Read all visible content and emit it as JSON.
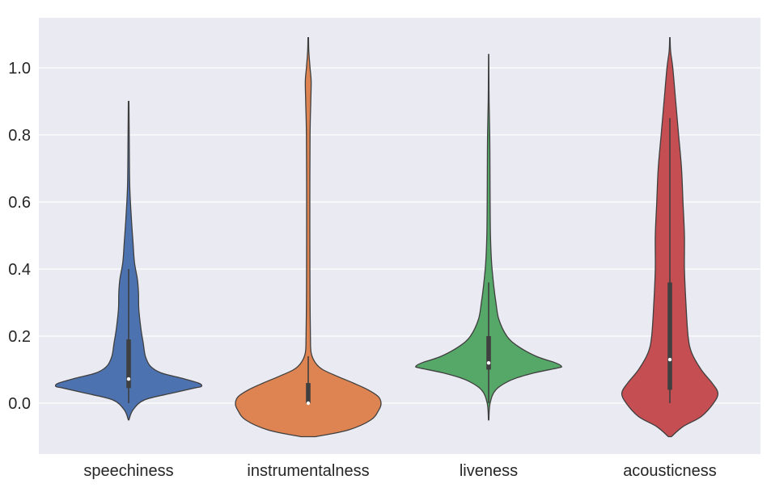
{
  "chart_data": {
    "type": "violin",
    "title": "",
    "xlabel": "",
    "ylabel": "",
    "ylim": [
      -0.15,
      1.15
    ],
    "yticks": [
      0.0,
      0.2,
      0.4,
      0.6,
      0.8,
      1.0
    ],
    "ytick_labels": [
      "0.0",
      "0.2",
      "0.4",
      "0.6",
      "0.8",
      "1.0"
    ],
    "grid": true,
    "background_color": "#eaeaf2",
    "categories": [
      "speechiness",
      "instrumentalness",
      "liveness",
      "acousticness"
    ],
    "violins": [
      {
        "category": "speechiness",
        "color": "#4c72b0",
        "range": [
          -0.05,
          0.9
        ],
        "box": {
          "q1": 0.045,
          "median": 0.072,
          "q3": 0.19,
          "whisker_low": 0.0,
          "whisker_high": 0.4
        },
        "profile": [
          [
            -0.05,
            0.004
          ],
          [
            -0.02,
            0.06
          ],
          [
            0.01,
            0.22
          ],
          [
            0.03,
            0.6
          ],
          [
            0.045,
            0.9
          ],
          [
            0.05,
            1.0
          ],
          [
            0.06,
            0.96
          ],
          [
            0.075,
            0.72
          ],
          [
            0.09,
            0.45
          ],
          [
            0.11,
            0.3
          ],
          [
            0.14,
            0.23
          ],
          [
            0.18,
            0.2
          ],
          [
            0.22,
            0.17
          ],
          [
            0.28,
            0.14
          ],
          [
            0.33,
            0.135
          ],
          [
            0.37,
            0.12
          ],
          [
            0.42,
            0.08
          ],
          [
            0.48,
            0.06
          ],
          [
            0.55,
            0.038
          ],
          [
            0.65,
            0.015
          ],
          [
            0.8,
            0.008
          ],
          [
            0.9,
            0.004
          ]
        ]
      },
      {
        "category": "instrumentalness",
        "color": "#dd8452",
        "range": [
          -0.1,
          1.09
        ],
        "box": {
          "q1": 0.0,
          "median": 0.0,
          "q3": 0.06,
          "whisker_low": 0.0,
          "whisker_high": 0.14
        },
        "profile": [
          [
            -0.1,
            0.1
          ],
          [
            -0.08,
            0.55
          ],
          [
            -0.05,
            0.86
          ],
          [
            -0.02,
            0.97
          ],
          [
            0.0,
            1.0
          ],
          [
            0.02,
            0.96
          ],
          [
            0.04,
            0.82
          ],
          [
            0.06,
            0.62
          ],
          [
            0.08,
            0.4
          ],
          [
            0.1,
            0.2
          ],
          [
            0.12,
            0.1
          ],
          [
            0.15,
            0.04
          ],
          [
            0.2,
            0.03
          ],
          [
            0.3,
            0.025
          ],
          [
            0.4,
            0.023
          ],
          [
            0.6,
            0.022
          ],
          [
            0.8,
            0.025
          ],
          [
            0.9,
            0.035
          ],
          [
            0.96,
            0.04
          ],
          [
            1.0,
            0.025
          ],
          [
            1.05,
            0.008
          ],
          [
            1.09,
            0.004
          ]
        ]
      },
      {
        "category": "liveness",
        "color": "#55a868",
        "range": [
          -0.05,
          1.04
        ],
        "box": {
          "q1": 0.1,
          "median": 0.12,
          "q3": 0.2,
          "whisker_low": 0.0,
          "whisker_high": 0.36
        },
        "profile": [
          [
            -0.05,
            0.003
          ],
          [
            0.0,
            0.02
          ],
          [
            0.04,
            0.1
          ],
          [
            0.07,
            0.32
          ],
          [
            0.09,
            0.62
          ],
          [
            0.105,
            0.95
          ],
          [
            0.11,
            1.0
          ],
          [
            0.12,
            0.92
          ],
          [
            0.14,
            0.65
          ],
          [
            0.17,
            0.4
          ],
          [
            0.2,
            0.25
          ],
          [
            0.25,
            0.14
          ],
          [
            0.3,
            0.1
          ],
          [
            0.35,
            0.07
          ],
          [
            0.42,
            0.04
          ],
          [
            0.5,
            0.025
          ],
          [
            0.6,
            0.02
          ],
          [
            0.7,
            0.018
          ],
          [
            0.8,
            0.015
          ],
          [
            0.9,
            0.006
          ],
          [
            1.0,
            0.003
          ],
          [
            1.04,
            0.002
          ]
        ]
      },
      {
        "category": "acousticness",
        "color": "#c44e52",
        "range": [
          -0.1,
          1.09
        ],
        "box": {
          "q1": 0.04,
          "median": 0.13,
          "q3": 0.36,
          "whisker_low": 0.0,
          "whisker_high": 0.85
        },
        "profile": [
          [
            -0.1,
            0.02
          ],
          [
            -0.07,
            0.18
          ],
          [
            -0.04,
            0.43
          ],
          [
            0.0,
            0.6
          ],
          [
            0.03,
            0.66
          ],
          [
            0.06,
            0.58
          ],
          [
            0.1,
            0.43
          ],
          [
            0.15,
            0.3
          ],
          [
            0.2,
            0.25
          ],
          [
            0.3,
            0.22
          ],
          [
            0.4,
            0.2
          ],
          [
            0.5,
            0.2
          ],
          [
            0.6,
            0.18
          ],
          [
            0.7,
            0.16
          ],
          [
            0.8,
            0.12
          ],
          [
            0.9,
            0.08
          ],
          [
            1.0,
            0.04
          ],
          [
            1.05,
            0.01
          ],
          [
            1.09,
            0.003
          ]
        ]
      }
    ]
  }
}
